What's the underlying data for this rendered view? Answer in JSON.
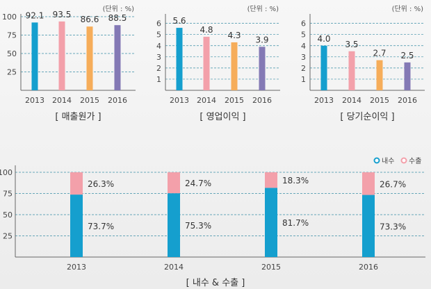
{
  "colors": {
    "c2013": "#159fce",
    "c2014": "#f3a0aa",
    "c2015": "#f6ad5a",
    "c2016": "#8479b5",
    "domestic": "#159fce",
    "export": "#f3a0aa",
    "grid": "#3a8fa6",
    "axis": "#666666"
  },
  "chart_data": [
    {
      "type": "bar",
      "caption": "[ 매출원가 ]",
      "unit": "(단위 : %)",
      "categories": [
        "2013",
        "2014",
        "2015",
        "2016"
      ],
      "values": [
        92.1,
        93.5,
        86.6,
        88.5
      ],
      "value_labels": [
        "92.1",
        "93.5",
        "86.6",
        "88.5"
      ],
      "yticks": [
        "25",
        "50",
        "75",
        "100"
      ],
      "ylim": [
        0,
        100
      ],
      "grid": true
    },
    {
      "type": "bar",
      "caption": "[ 영업이익 ]",
      "unit": "(단위 : %)",
      "categories": [
        "2013",
        "2014",
        "2015",
        "2016"
      ],
      "values": [
        5.6,
        4.8,
        4.3,
        3.9
      ],
      "value_labels": [
        "5.6",
        "4.8",
        "4.3",
        "3.9"
      ],
      "yticks": [
        "1",
        "2",
        "3",
        "4",
        "5",
        "6"
      ],
      "ylim": [
        0,
        6.6
      ],
      "grid": true
    },
    {
      "type": "bar",
      "caption": "[ 당기순이익 ]",
      "unit": "(단위 : %)",
      "categories": [
        "2013",
        "2014",
        "2015",
        "2016"
      ],
      "values": [
        4.0,
        3.5,
        2.7,
        2.5
      ],
      "value_labels": [
        "4.0",
        "3.5",
        "2.7",
        "2.5"
      ],
      "yticks": [
        "1",
        "2",
        "3",
        "4",
        "5",
        "6"
      ],
      "ylim": [
        0,
        6.6
      ],
      "grid": true
    },
    {
      "type": "bar",
      "stacked": true,
      "caption": "[ 내수 & 수출 ]",
      "categories": [
        "2013",
        "2014",
        "2015",
        "2016"
      ],
      "series": [
        {
          "name": "내수",
          "values": [
            73.7,
            75.3,
            81.7,
            73.3
          ],
          "labels": [
            "73.7%",
            "75.3%",
            "81.7%",
            "73.3%"
          ]
        },
        {
          "name": "수출",
          "values": [
            26.3,
            24.7,
            18.3,
            26.7
          ],
          "labels": [
            "26.3%",
            "24.7%",
            "18.3%",
            "26.7%"
          ]
        }
      ],
      "yticks": [
        "25",
        "50",
        "75",
        "100"
      ],
      "ylim": [
        0,
        100
      ],
      "legend": "top-right",
      "grid": true
    }
  ]
}
